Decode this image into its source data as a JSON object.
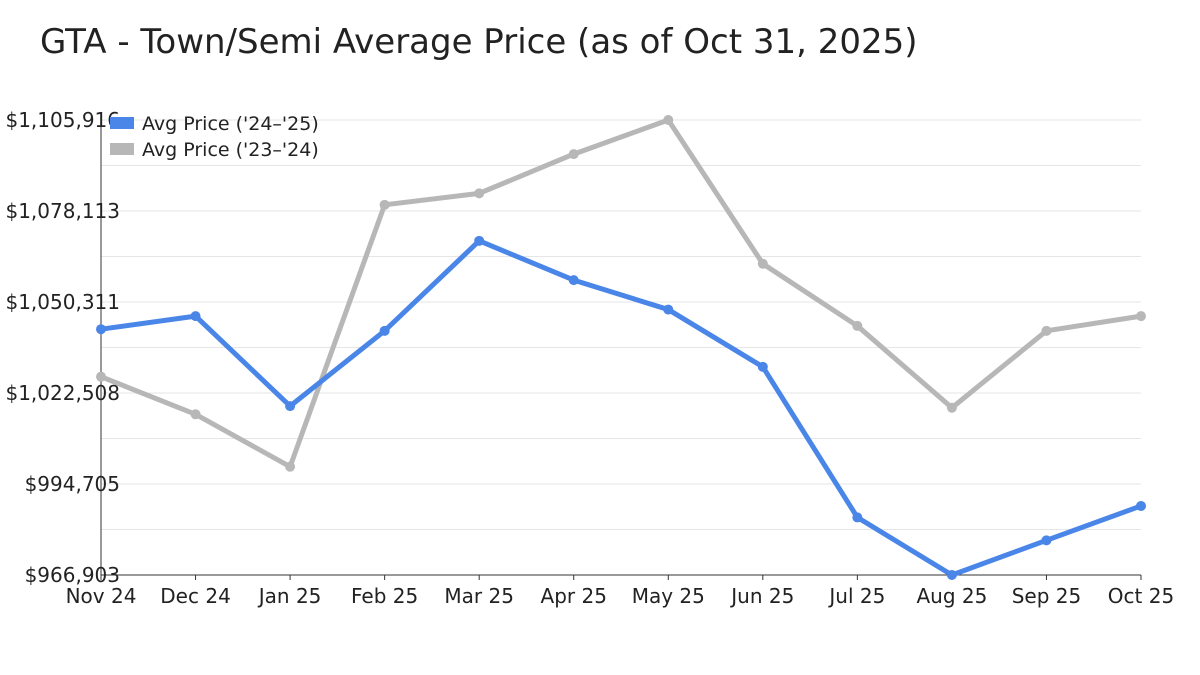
{
  "chart_data": {
    "type": "line",
    "title": "GTA - Town/Semi Average Price (as of Oct 31, 2025)",
    "xlabel": "",
    "ylabel": "",
    "categories": [
      "Nov 24",
      "Dec 24",
      "Jan 25",
      "Feb 25",
      "Mar 25",
      "Apr 25",
      "May 25",
      "Jun 25",
      "Jul 25",
      "Aug 25",
      "Sep 25",
      "Oct 25"
    ],
    "y_ticks": [
      "$966,903",
      "$994,705",
      "$1,022,508",
      "$1,050,311",
      "$1,078,113",
      "$1,105,916"
    ],
    "y_tick_values": [
      966903,
      994705,
      1022508,
      1050311,
      1078113,
      1105916
    ],
    "ylim": [
      966903,
      1105916
    ],
    "grid": true,
    "legend_position": "top-left",
    "series": [
      {
        "name": "Avg Price ('24–'25)",
        "color": "#4a86e8",
        "values": [
          1042000,
          1046000,
          1018500,
          1041500,
          1069000,
          1057000,
          1048000,
          1030500,
          984500,
          966903,
          977500,
          988000
        ]
      },
      {
        "name": "Avg Price ('23–'24)",
        "color": "#b7b7b7",
        "values": [
          1027500,
          1016000,
          1000000,
          1080000,
          1083500,
          1095500,
          1105916,
          1062000,
          1043000,
          1018000,
          1041500,
          1046000
        ]
      }
    ]
  }
}
